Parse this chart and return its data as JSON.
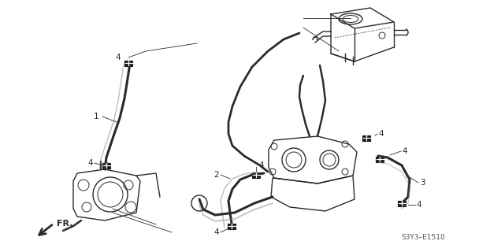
{
  "bg_color": "#ffffff",
  "line_color": "#2a2a2a",
  "label_color": "#2a2a2a",
  "diagram_code": "S3Y3–E1510",
  "fr_label": "FR.",
  "figsize": [
    6.22,
    3.2
  ],
  "dpi": 100,
  "leader_lw": 0.6,
  "component_lw": 1.0,
  "hose_lw": 2.2,
  "clamp_size": 0.012
}
